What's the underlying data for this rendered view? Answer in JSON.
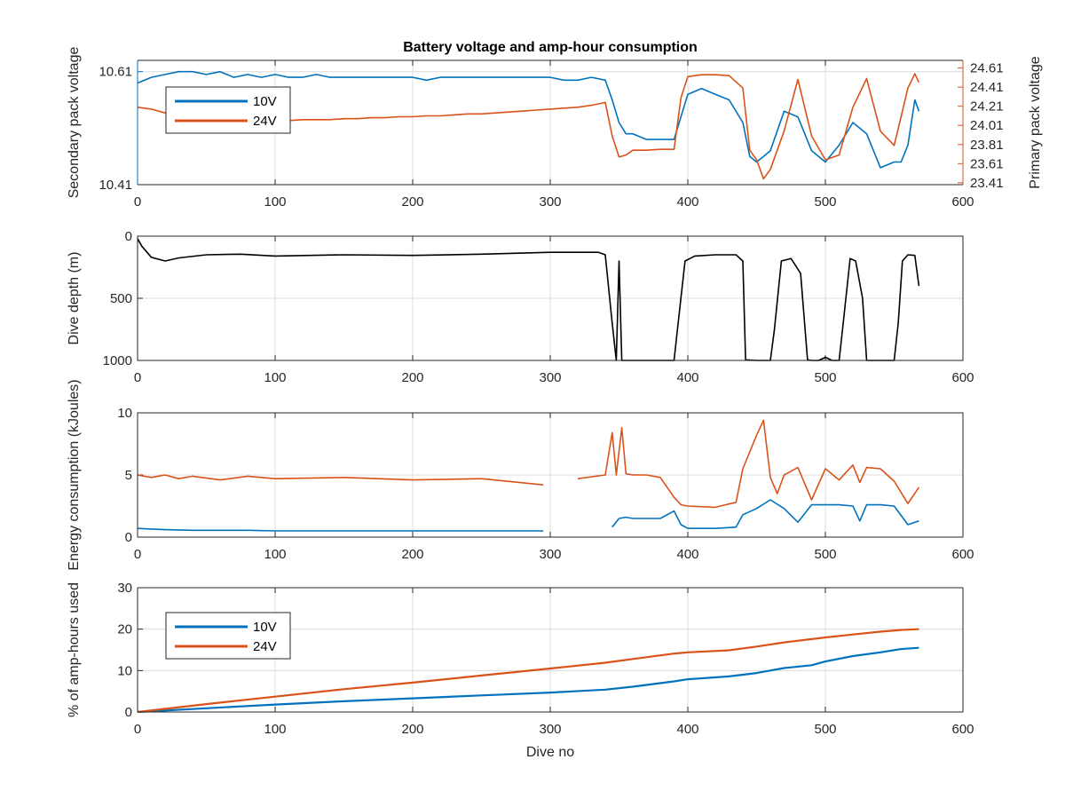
{
  "figure_title": "Battery voltage and amp-hour consumption",
  "colors": {
    "10V": "#0072BD",
    "24V": "#D95319",
    "depth": "#000000",
    "axis": "#262626",
    "grid": "#dcdcdc"
  },
  "chart_data": [
    {
      "id": "voltage",
      "type": "line",
      "title": "Battery voltage and amp-hour consumption",
      "xlabel": "",
      "ylabel_left": "Secondary pack voltage",
      "ylabel_right": "Primary pack voltage",
      "xlim": [
        0,
        600
      ],
      "xticks": [
        0,
        100,
        200,
        300,
        400,
        500,
        600
      ],
      "ylim_left": [
        10.41,
        10.63
      ],
      "yticks_left": [
        10.41,
        10.61
      ],
      "ylim_right": [
        23.39,
        24.69
      ],
      "yticks_right": [
        23.41,
        23.61,
        23.81,
        24.01,
        24.21,
        24.41,
        24.61
      ],
      "grid": true,
      "legend": {
        "position": "top-left",
        "entries": [
          "10V",
          "24V"
        ]
      },
      "series": [
        {
          "name": "10V",
          "axis": "left",
          "x": [
            0,
            10,
            20,
            30,
            40,
            50,
            60,
            70,
            80,
            90,
            100,
            110,
            120,
            130,
            140,
            150,
            160,
            170,
            180,
            190,
            200,
            210,
            220,
            230,
            240,
            250,
            260,
            270,
            280,
            290,
            300,
            310,
            320,
            330,
            340,
            345,
            350,
            355,
            360,
            370,
            380,
            390,
            400,
            410,
            420,
            430,
            440,
            445,
            450,
            455,
            460,
            470,
            480,
            490,
            500,
            510,
            520,
            530,
            540,
            550,
            555,
            560,
            565,
            568
          ],
          "y": [
            10.59,
            10.6,
            10.605,
            10.61,
            10.61,
            10.605,
            10.61,
            10.6,
            10.605,
            10.6,
            10.605,
            10.6,
            10.6,
            10.605,
            10.6,
            10.6,
            10.6,
            10.6,
            10.6,
            10.6,
            10.6,
            10.595,
            10.6,
            10.6,
            10.6,
            10.6,
            10.6,
            10.6,
            10.6,
            10.6,
            10.6,
            10.595,
            10.595,
            10.6,
            10.595,
            10.56,
            10.52,
            10.5,
            10.5,
            10.49,
            10.49,
            10.49,
            10.57,
            10.58,
            10.57,
            10.56,
            10.52,
            10.46,
            10.45,
            10.46,
            10.47,
            10.54,
            10.53,
            10.47,
            10.45,
            10.48,
            10.52,
            10.5,
            10.44,
            10.45,
            10.45,
            10.48,
            10.56,
            10.54
          ]
        },
        {
          "name": "24V",
          "axis": "right",
          "x": [
            0,
            10,
            20,
            30,
            40,
            50,
            60,
            70,
            80,
            90,
            100,
            110,
            120,
            130,
            140,
            150,
            160,
            170,
            180,
            190,
            200,
            210,
            220,
            230,
            240,
            250,
            260,
            270,
            280,
            290,
            300,
            310,
            320,
            330,
            340,
            345,
            350,
            355,
            360,
            370,
            380,
            390,
            395,
            400,
            410,
            420,
            430,
            440,
            445,
            450,
            455,
            460,
            470,
            480,
            490,
            500,
            510,
            520,
            530,
            540,
            550,
            555,
            560,
            565,
            568
          ],
          "y": [
            24.2,
            24.18,
            24.14,
            24.12,
            24.1,
            24.08,
            24.08,
            24.07,
            24.06,
            24.05,
            24.06,
            24.06,
            24.07,
            24.07,
            24.07,
            24.08,
            24.08,
            24.09,
            24.09,
            24.1,
            24.1,
            24.11,
            24.11,
            24.12,
            24.13,
            24.13,
            24.14,
            24.15,
            24.16,
            24.17,
            24.18,
            24.19,
            24.2,
            24.22,
            24.25,
            23.9,
            23.68,
            23.7,
            23.75,
            23.75,
            23.76,
            23.76,
            24.3,
            24.52,
            24.54,
            24.54,
            24.53,
            24.4,
            23.75,
            23.65,
            23.45,
            23.55,
            23.95,
            24.49,
            23.9,
            23.65,
            23.7,
            24.2,
            24.5,
            23.95,
            23.8,
            24.1,
            24.4,
            24.55,
            24.46
          ]
        }
      ]
    },
    {
      "id": "depth",
      "type": "line",
      "title": "",
      "xlabel": "",
      "ylabel": "Dive depth (m)",
      "xlim": [
        0,
        600
      ],
      "xticks": [
        0,
        100,
        200,
        300,
        400,
        500,
        600
      ],
      "ylim": [
        0,
        1000
      ],
      "y_reversed": true,
      "yticks": [
        0,
        500,
        1000
      ],
      "grid": true,
      "series": [
        {
          "name": "",
          "x": [
            0,
            3,
            10,
            20,
            30,
            50,
            75,
            100,
            150,
            200,
            250,
            300,
            335,
            340,
            345,
            348,
            350,
            352,
            355,
            360,
            380,
            390,
            393,
            398,
            405,
            420,
            435,
            440,
            442,
            450,
            460,
            463,
            468,
            475,
            482,
            487,
            490,
            495,
            500,
            505,
            510,
            513,
            518,
            522,
            527,
            530,
            550,
            553,
            556,
            560,
            565,
            568
          ],
          "y": [
            20,
            80,
            170,
            200,
            175,
            150,
            145,
            160,
            150,
            155,
            145,
            130,
            130,
            150,
            700,
            1000,
            200,
            1000,
            1000,
            1000,
            1000,
            1000,
            700,
            200,
            160,
            150,
            150,
            200,
            995,
            1000,
            1000,
            750,
            200,
            180,
            300,
            995,
            1000,
            1000,
            975,
            1000,
            1000,
            700,
            180,
            200,
            500,
            1000,
            1000,
            700,
            200,
            150,
            155,
            400
          ]
        }
      ]
    },
    {
      "id": "energy",
      "type": "line",
      "title": "",
      "xlabel": "",
      "ylabel": "Energy consumption (kJoules)",
      "xlim": [
        0,
        600
      ],
      "xticks": [
        0,
        100,
        200,
        300,
        400,
        500,
        600
      ],
      "ylim": [
        0,
        10
      ],
      "yticks": [
        0,
        5,
        10
      ],
      "grid": true,
      "series": [
        {
          "name": "10V",
          "x": [
            0,
            10,
            20,
            40,
            60,
            80,
            100,
            150,
            200,
            250,
            295,
            300,
            345,
            350,
            355,
            360,
            370,
            380,
            390,
            395,
            400,
            420,
            435,
            440,
            450,
            460,
            470,
            480,
            490,
            500,
            510,
            520,
            525,
            530,
            540,
            550,
            560,
            568
          ],
          "y": [
            0.7,
            0.65,
            0.6,
            0.55,
            0.55,
            0.55,
            0.5,
            0.5,
            0.5,
            0.5,
            0.5,
            null,
            0.8,
            1.5,
            1.6,
            1.5,
            1.5,
            1.5,
            2.1,
            1.0,
            0.7,
            0.7,
            0.8,
            1.8,
            2.3,
            3.0,
            2.3,
            1.2,
            2.6,
            2.6,
            2.6,
            2.5,
            1.3,
            2.6,
            2.6,
            2.5,
            1.0,
            1.3
          ]
        },
        {
          "name": "24V",
          "x": [
            0,
            10,
            20,
            30,
            40,
            60,
            80,
            100,
            150,
            200,
            250,
            295,
            300,
            320,
            340,
            345,
            348,
            352,
            355,
            360,
            370,
            380,
            390,
            395,
            400,
            420,
            435,
            440,
            450,
            455,
            460,
            465,
            470,
            480,
            490,
            500,
            510,
            520,
            525,
            530,
            540,
            550,
            560,
            568
          ],
          "y": [
            5.0,
            4.8,
            5.0,
            4.7,
            4.9,
            4.6,
            4.9,
            4.7,
            4.8,
            4.6,
            4.7,
            4.2,
            null,
            4.7,
            5.0,
            8.4,
            5.0,
            8.8,
            5.1,
            5.0,
            5.0,
            4.8,
            3.2,
            2.6,
            2.5,
            2.4,
            2.8,
            5.5,
            8.2,
            9.4,
            4.8,
            3.5,
            5.0,
            5.6,
            3.0,
            5.5,
            4.6,
            5.8,
            4.4,
            5.6,
            5.5,
            4.5,
            2.7,
            4.0
          ]
        }
      ]
    },
    {
      "id": "amphours",
      "type": "line",
      "title": "",
      "xlabel": "Dive no",
      "ylabel": "% of amp-hours used",
      "xlim": [
        0,
        600
      ],
      "xticks": [
        0,
        100,
        200,
        300,
        400,
        500,
        600
      ],
      "ylim": [
        0,
        30
      ],
      "yticks": [
        0,
        10,
        20,
        30
      ],
      "grid": true,
      "legend": {
        "position": "top-left",
        "entries": [
          "10V",
          "24V"
        ]
      },
      "series": [
        {
          "name": "10V",
          "x": [
            0,
            50,
            100,
            150,
            200,
            250,
            300,
            340,
            360,
            390,
            400,
            430,
            450,
            470,
            490,
            500,
            520,
            540,
            555,
            568
          ],
          "y": [
            0,
            0.9,
            1.8,
            2.6,
            3.3,
            4.0,
            4.7,
            5.4,
            6.1,
            7.4,
            7.9,
            8.6,
            9.4,
            10.6,
            11.3,
            12.2,
            13.5,
            14.4,
            15.2,
            15.5
          ]
        },
        {
          "name": "24V",
          "x": [
            0,
            50,
            100,
            150,
            200,
            250,
            300,
            340,
            360,
            390,
            400,
            430,
            450,
            470,
            490,
            500,
            520,
            540,
            555,
            568
          ],
          "y": [
            0,
            1.9,
            3.7,
            5.5,
            7.1,
            8.8,
            10.5,
            11.9,
            12.8,
            14.1,
            14.4,
            14.9,
            15.8,
            16.8,
            17.6,
            18.0,
            18.7,
            19.4,
            19.8,
            20.0
          ]
        }
      ]
    }
  ]
}
